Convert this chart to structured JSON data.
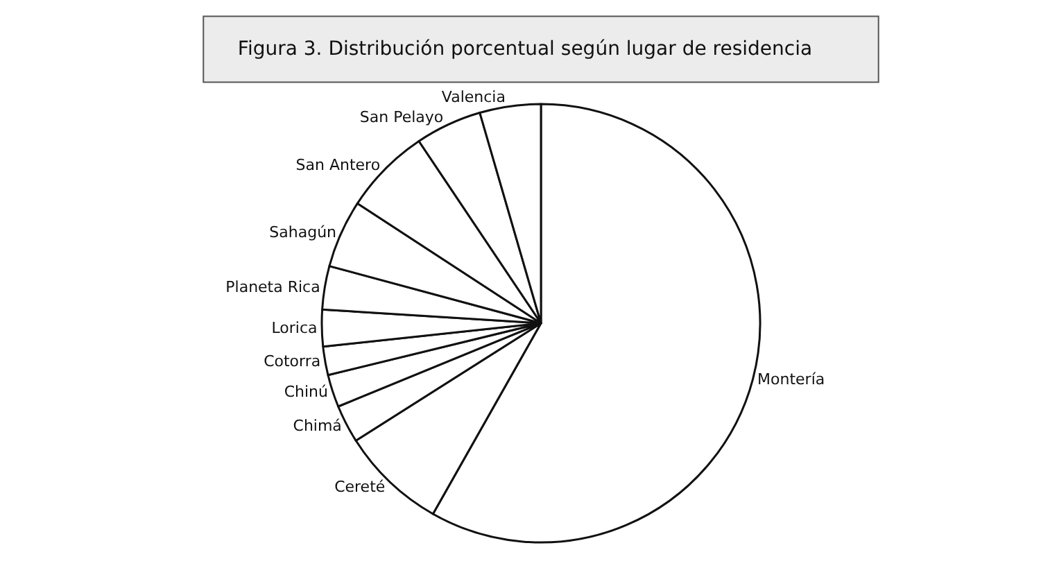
{
  "chart_data": {
    "type": "pie",
    "title": "Figura 3. Distribución porcentual según lugar de residencia",
    "categories": [
      "Montería",
      "Cereté",
      "Chimá",
      "Chinú",
      "Cotorra",
      "Lorica",
      "Planeta Rica",
      "Sahagún",
      "San Antero",
      "San Pelayo",
      "Valencia"
    ],
    "values": [
      58.2,
      7.8,
      2.8,
      2.4,
      2.1,
      2.7,
      3.2,
      5.0,
      6.4,
      4.9,
      4.5
    ],
    "colors": [
      "#ffffff",
      "#ffffff",
      "#ffffff",
      "#ffffff",
      "#ffffff",
      "#ffffff",
      "#ffffff",
      "#ffffff",
      "#ffffff",
      "#ffffff",
      "#ffffff"
    ],
    "legend": false
  }
}
